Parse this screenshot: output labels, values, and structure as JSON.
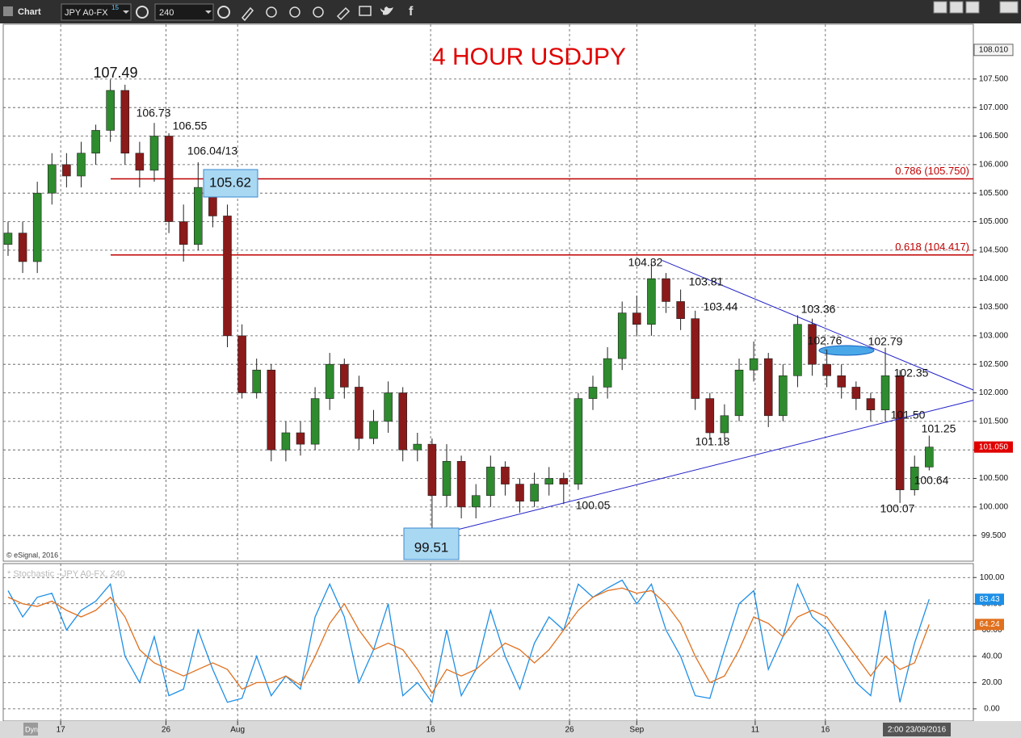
{
  "toolbar": {
    "title": "Chart",
    "symbol": "JPY A0-FX",
    "symbol_sup": "15",
    "interval": "240",
    "dyn": "Dyn",
    "copyright": "© eSignal, 2016",
    "cursor_date": "2:00 23/09/2016"
  },
  "chart_data": [
    {
      "type": "candlestick",
      "title": "4 HOUR USDJPY",
      "open": [
        104.6,
        104.8,
        104.3,
        105.5,
        106.0,
        105.8,
        106.2,
        106.6,
        107.3,
        106.2,
        105.9,
        106.5,
        105.0,
        104.6,
        105.6,
        105.1,
        103.0,
        102.0,
        102.4,
        101.0,
        101.3,
        101.1,
        101.9,
        102.5,
        102.1,
        101.2,
        101.5,
        102.0,
        101.0,
        101.1,
        100.2,
        100.8,
        100.0,
        100.2,
        100.7,
        100.4,
        100.1,
        100.4,
        100.5,
        100.4,
        101.9,
        102.1,
        102.6,
        103.4,
        103.2,
        104.0,
        103.6,
        103.3,
        101.9,
        101.3,
        101.6,
        102.4,
        102.6,
        101.6,
        102.3,
        103.2,
        102.5,
        102.3,
        102.1,
        101.9,
        101.7,
        102.3,
        100.3,
        100.7
      ],
      "high": [
        105.0,
        105.0,
        105.7,
        106.2,
        106.2,
        106.4,
        106.7,
        107.49,
        107.4,
        106.4,
        106.73,
        106.55,
        105.3,
        106.04,
        105.8,
        105.3,
        103.2,
        102.6,
        102.5,
        101.5,
        101.5,
        102.1,
        102.7,
        102.6,
        102.3,
        101.7,
        102.2,
        102.1,
        101.3,
        101.2,
        101.1,
        100.9,
        100.4,
        100.9,
        100.8,
        100.5,
        100.6,
        100.7,
        100.6,
        102.0,
        102.3,
        102.8,
        103.6,
        103.7,
        104.32,
        104.1,
        103.81,
        103.44,
        102.0,
        101.8,
        102.6,
        102.9,
        102.7,
        102.5,
        103.36,
        103.3,
        102.76,
        102.5,
        102.2,
        102.0,
        102.79,
        102.4,
        100.9,
        101.25
      ],
      "low": [
        104.4,
        104.1,
        104.1,
        105.3,
        105.6,
        105.6,
        106.0,
        106.4,
        106.0,
        105.6,
        105.7,
        104.8,
        104.3,
        104.5,
        104.9,
        102.8,
        101.9,
        101.9,
        100.8,
        100.8,
        100.9,
        101.0,
        101.7,
        101.9,
        101.0,
        101.1,
        101.3,
        100.8,
        100.8,
        99.51,
        100.0,
        99.8,
        99.8,
        100.0,
        100.2,
        99.9,
        100.0,
        100.2,
        100.05,
        100.3,
        101.7,
        101.9,
        102.4,
        103.0,
        103.0,
        103.4,
        103.1,
        101.7,
        101.18,
        101.2,
        101.5,
        102.2,
        101.4,
        101.5,
        102.1,
        102.3,
        102.1,
        101.9,
        101.7,
        101.5,
        101.5,
        100.07,
        100.2,
        100.64
      ],
      "close": [
        104.8,
        104.3,
        105.5,
        106.0,
        105.8,
        106.2,
        106.6,
        107.3,
        106.2,
        105.9,
        106.5,
        105.0,
        104.6,
        105.6,
        105.1,
        103.0,
        102.0,
        102.4,
        101.0,
        101.3,
        101.1,
        101.9,
        102.5,
        102.1,
        101.2,
        101.5,
        102.0,
        101.0,
        101.1,
        100.2,
        100.8,
        100.0,
        100.2,
        100.7,
        100.4,
        100.1,
        100.4,
        100.5,
        100.4,
        101.9,
        102.1,
        102.6,
        103.4,
        103.2,
        104.0,
        103.6,
        103.3,
        101.9,
        101.3,
        101.6,
        102.4,
        102.6,
        101.6,
        102.3,
        103.2,
        102.5,
        102.3,
        102.1,
        101.9,
        101.7,
        102.3,
        100.3,
        100.7,
        101.05
      ],
      "up_color": "#2e8b2e",
      "down_color": "#8b1a1a",
      "xlim": [
        -0.33,
        66.02
      ],
      "xticks": [
        {
          "value": 3.6,
          "label": "17"
        },
        {
          "value": 10.8,
          "label": "26"
        },
        {
          "value": 15.7,
          "label": "Aug"
        },
        {
          "value": 28.9,
          "label": "16"
        },
        {
          "value": 38.4,
          "label": "26"
        },
        {
          "value": 43.0,
          "label": "Sep"
        },
        {
          "value": 51.1,
          "label": "11"
        },
        {
          "value": 55.9,
          "label": "16"
        }
      ],
      "ylim": [
        99.05,
        108.46
      ],
      "yticks": [
        {
          "value": 99.5,
          "label": "99.500"
        },
        {
          "value": 100.0,
          "label": "100.000"
        },
        {
          "value": 100.5,
          "label": "100.500"
        },
        {
          "value": 101.0,
          "label": "101.000"
        },
        {
          "value": 101.5,
          "label": "101.500"
        },
        {
          "value": 102.0,
          "label": "102.000"
        },
        {
          "value": 102.5,
          "label": "102.500"
        },
        {
          "value": 103.0,
          "label": "103.000"
        },
        {
          "value": 103.5,
          "label": "103.500"
        },
        {
          "value": 104.0,
          "label": "104.000"
        },
        {
          "value": 104.5,
          "label": "104.500"
        },
        {
          "value": 105.0,
          "label": "105.000"
        },
        {
          "value": 105.5,
          "label": "105.500"
        },
        {
          "value": 106.0,
          "label": "106.000"
        },
        {
          "value": 106.5,
          "label": "106.500"
        },
        {
          "value": 107.0,
          "label": "107.000"
        },
        {
          "value": 107.5,
          "label": "107.500"
        }
      ],
      "grid": true,
      "top_marker": {
        "value": 108.01,
        "label": "108.010"
      },
      "last_price": {
        "value": 101.05,
        "label": "101.050"
      },
      "levels": [
        {
          "value": 105.75,
          "label": "0.786 (105.750)",
          "color": "#c00000"
        },
        {
          "value": 104.417,
          "label": "0.618 (104.417)",
          "color": "#c00000"
        }
      ],
      "trendlines": [
        {
          "x": [
            29.3,
            66.02
          ],
          "y": [
            99.51,
            101.87
          ],
          "color": "#2020c8"
        },
        {
          "x": [
            44.75,
            66.02
          ],
          "y": [
            104.32,
            102.05
          ],
          "color": "#2020c8"
        }
      ],
      "annotations": [
        "107.49",
        "106.73",
        "106.55",
        "106.04/13",
        "105.62",
        "104.32",
        "103.81",
        "103.44",
        "101.18",
        "103.36",
        "102.76",
        "102.79",
        "102.35",
        "101.50",
        "101.25",
        "100.64",
        "100.07",
        "100.05",
        "99.51"
      ]
    },
    {
      "type": "line",
      "title": "* Stochastic - JPY A0-FX, 240",
      "series": [
        {
          "color": "#1e8fe6",
          "values": [
            90,
            70,
            85,
            88,
            60,
            75,
            82,
            95,
            40,
            20,
            55,
            10,
            15,
            60,
            30,
            5,
            8,
            40,
            10,
            25,
            15,
            70,
            95,
            70,
            20,
            45,
            80,
            10,
            20,
            5,
            60,
            10,
            30,
            75,
            40,
            15,
            50,
            70,
            60,
            95,
            85,
            92,
            98,
            80,
            95,
            60,
            40,
            10,
            8,
            45,
            80,
            90,
            30,
            55,
            95,
            70,
            60,
            40,
            20,
            10,
            75,
            5,
            50,
            83.43
          ]
        },
        {
          "color": "#e0701e",
          "values": [
            85,
            80,
            78,
            82,
            75,
            70,
            75,
            85,
            70,
            45,
            35,
            30,
            25,
            30,
            35,
            30,
            15,
            20,
            20,
            25,
            18,
            40,
            65,
            80,
            60,
            45,
            50,
            45,
            30,
            12,
            30,
            25,
            30,
            40,
            50,
            45,
            35,
            45,
            60,
            75,
            85,
            90,
            92,
            88,
            90,
            80,
            65,
            40,
            20,
            25,
            45,
            70,
            65,
            55,
            70,
            75,
            70,
            55,
            40,
            25,
            40,
            30,
            35,
            64.24
          ]
        }
      ],
      "ylim": [
        -9.3,
        110.6
      ],
      "yticks": [
        {
          "value": 0,
          "label": "0.00"
        },
        {
          "value": 20,
          "label": "20.00"
        },
        {
          "value": 40,
          "label": "40.00"
        },
        {
          "value": 60,
          "label": "60.00"
        },
        {
          "value": 80,
          "label": "80.00"
        },
        {
          "value": 100,
          "label": "100.00"
        }
      ],
      "grid": true
    }
  ]
}
